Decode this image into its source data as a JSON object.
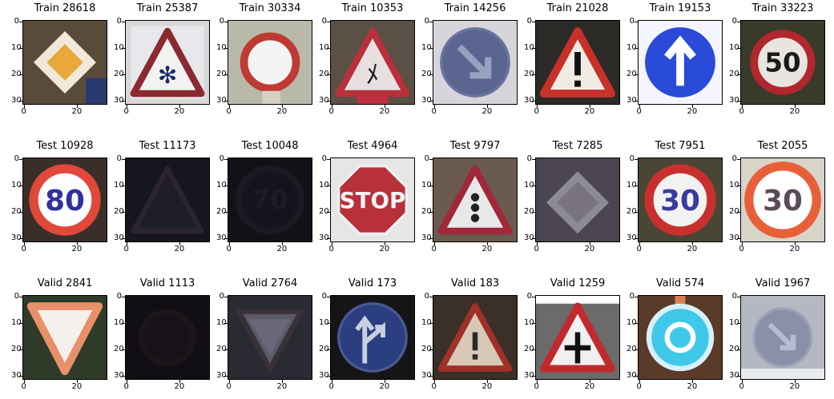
{
  "axes": {
    "y_ticks": [
      "0",
      "10",
      "20",
      "30"
    ],
    "x_ticks": [
      "0",
      "20"
    ]
  },
  "rows": [
    {
      "cells": [
        {
          "title": "Train 28618",
          "icon": "priority-road-sign",
          "bg": "#5a4a3a"
        },
        {
          "title": "Train 25387",
          "icon": "snow-warning-sign",
          "bg": "#d8d8d8"
        },
        {
          "title": "Train 30334",
          "icon": "no-vehicles-sign",
          "bg": "#b9b9aa"
        },
        {
          "title": "Train 10353",
          "icon": "pedestrian-warning-sign",
          "bg": "#5a5045"
        },
        {
          "title": "Train 14256",
          "icon": "keep-right-sign",
          "bg": "#d7d5db"
        },
        {
          "title": "Train 21028",
          "icon": "general-caution-sign",
          "bg": "#2b2a26"
        },
        {
          "title": "Train 19153",
          "icon": "ahead-only-sign",
          "bg": "#f5f5ff"
        },
        {
          "title": "Train 33223",
          "icon": "speed-limit-50-sign",
          "bg": "#3a3a2a"
        }
      ]
    },
    {
      "cells": [
        {
          "title": "Test 10928",
          "icon": "speed-limit-80-sign",
          "bg": "#3a2e2a"
        },
        {
          "title": "Test 11173",
          "icon": "dark-warning-sign",
          "bg": "#161620"
        },
        {
          "title": "Test 10048",
          "icon": "dark-speed-limit-70-sign",
          "bg": "#111118"
        },
        {
          "title": "Test 4964",
          "icon": "stop-sign",
          "bg": "#e6e6e6"
        },
        {
          "title": "Test 9797",
          "icon": "traffic-signals-warning-sign",
          "bg": "#6a5a50"
        },
        {
          "title": "Test 7285",
          "icon": "priority-road-sign-faded",
          "bg": "#4a4550"
        },
        {
          "title": "Test 7951",
          "icon": "speed-limit-30-sign",
          "bg": "#4a4636"
        },
        {
          "title": "Test 2055",
          "icon": "speed-limit-30-sign-bright",
          "bg": "#d8d4c8"
        }
      ]
    },
    {
      "cells": [
        {
          "title": "Valid 2841",
          "icon": "yield-sign",
          "bg": "#2f3a28"
        },
        {
          "title": "Valid 1113",
          "icon": "dark-speed-limit-sign",
          "bg": "#120f14"
        },
        {
          "title": "Valid 2764",
          "icon": "yield-sign-dark",
          "bg": "#2a2a32"
        },
        {
          "title": "Valid 173",
          "icon": "go-straight-or-right-sign",
          "bg": "#151518"
        },
        {
          "title": "Valid 183",
          "icon": "caution-sign-small",
          "bg": "#3a3028"
        },
        {
          "title": "Valid 1259",
          "icon": "crossroads-warning-sign",
          "bg": "#6b6b6b"
        },
        {
          "title": "Valid 574",
          "icon": "roundabout-sign",
          "bg": "#5a3a28"
        },
        {
          "title": "Valid 1967",
          "icon": "keep-right-sign-faded",
          "bg": "#b5b8c0"
        }
      ]
    }
  ]
}
